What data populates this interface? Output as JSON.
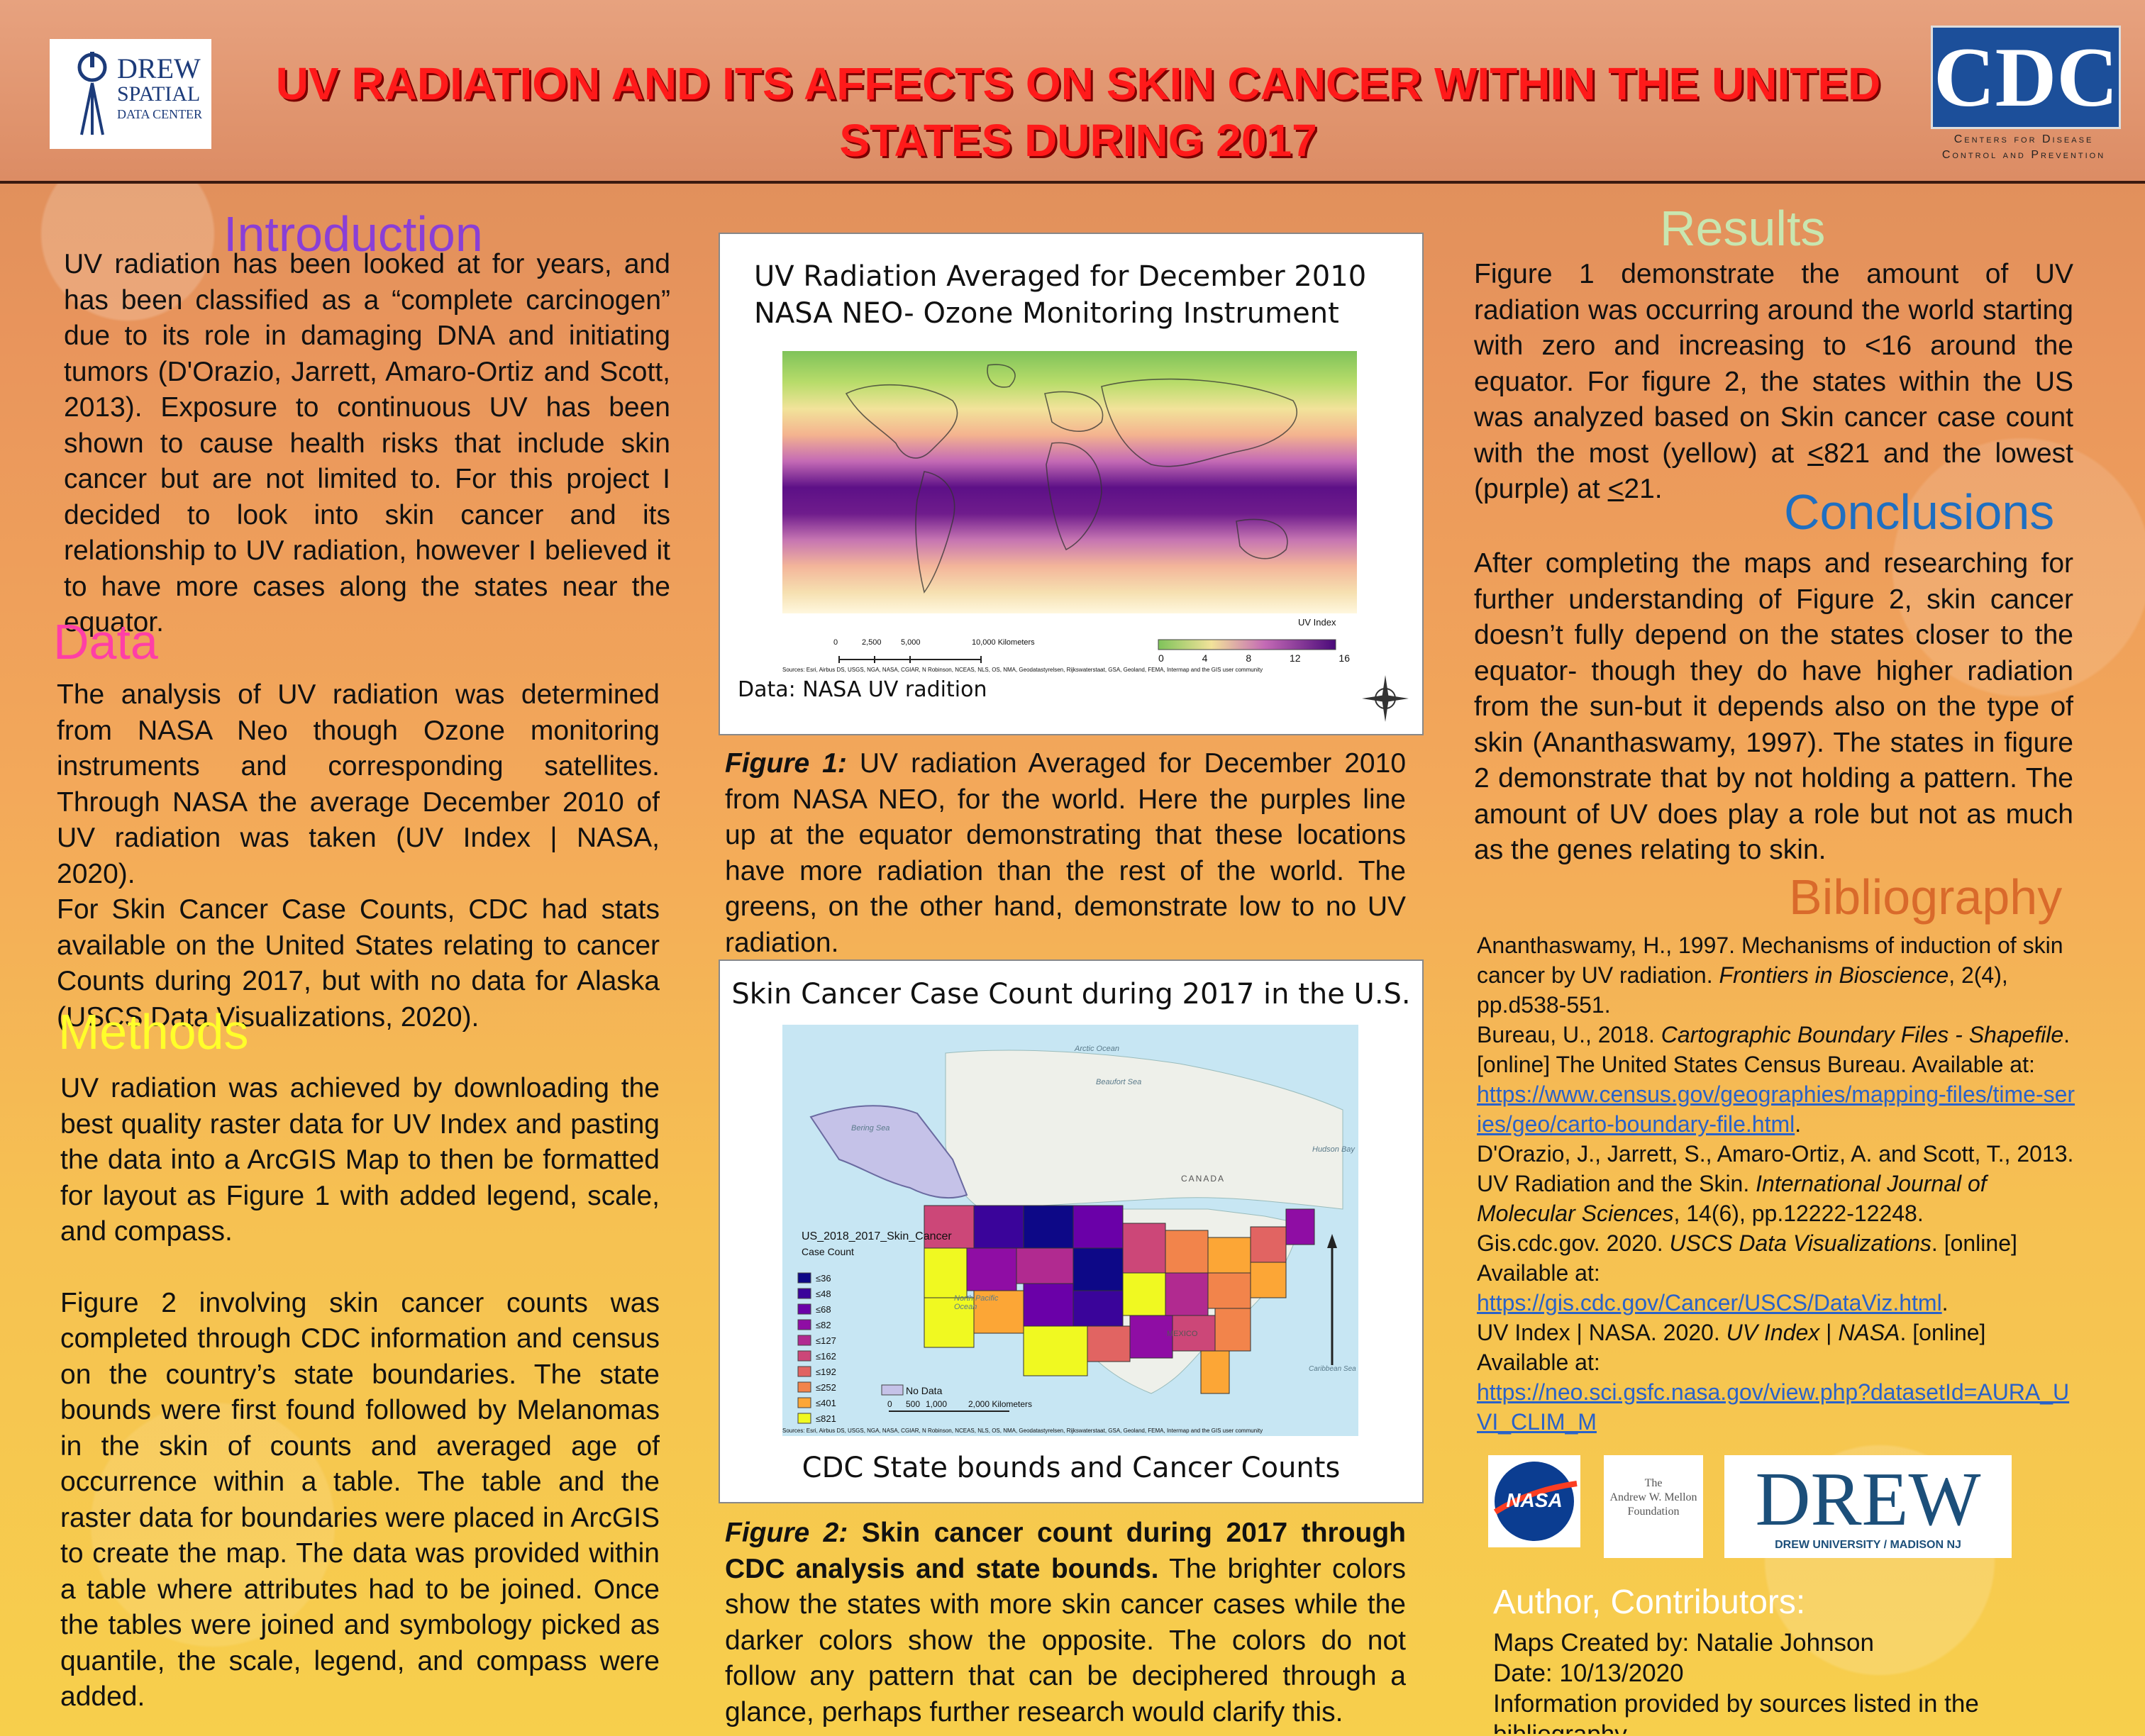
{
  "header": {
    "title": "UV RADIATION AND ITS AFFECTS ON SKIN CANCER WITHIN THE UNITED STATES DURING 2017",
    "drew_logo": {
      "line1": "DREW",
      "line2": "SPATIAL",
      "line3": "DATA CENTER"
    },
    "cdc_logo": {
      "mark": "CDC",
      "line1": "Centers for Disease",
      "line2": "Control and Prevention"
    }
  },
  "introduction": {
    "heading": "Introduction",
    "text": "UV radiation has been looked at for years, and has been classified as a “complete carcinogen” due to its role in damaging DNA and initiating tumors (D'Orazio, Jarrett, Amaro-Ortiz and Scott, 2013). Exposure to continuous UV has been shown to cause health risks that include skin cancer but are not limited to. For this project I decided to look into skin cancer and its relationship to UV radiation, however I believed it to have more cases along the states near the equator."
  },
  "data_section": {
    "heading": "Data",
    "p1": "The analysis of UV radiation was determined from NASA Neo though Ozone monitoring instruments and corresponding satellites. Through NASA the average December 2010 of UV radiation was taken (UV Index | NASA, 2020).",
    "p2": "For Skin Cancer Case Counts, CDC had stats available on the United States relating to cancer Counts during 2017, but with no data for Alaska (USCS Data Visualizations, 2020)."
  },
  "methods": {
    "heading": "Methods",
    "p1": "UV radiation was achieved by downloading the best quality raster data for UV Index and pasting the data into a ArcGIS Map to then be formatted for layout as Figure 1 with added legend, scale, and compass.",
    "p2": "Figure 2 involving skin cancer counts was completed through CDC information and census on the country’s state boundaries. The state bounds were first found followed by Melanomas in the skin of counts and averaged age of occurrence within a table. The table and the raster data for boundaries were placed in ArcGIS to create the map. The data was provided within a table where attributes had to be joined. Once the tables were joined and symbology picked as quantile, the scale, legend, and compass were added."
  },
  "figure1": {
    "title_line1": "UV Radiation Averaged for December 2010",
    "title_line2": "NASA NEO- Ozone Monitoring Instrument",
    "legend_title": "UV Index",
    "legend_ticks": [
      "0",
      "4",
      "8",
      "12",
      "16"
    ],
    "scale_labels": [
      "0",
      "2,500",
      "5,000",
      "10,000 Kilometers"
    ],
    "sources": "Sources: Esri, Airbus DS, USGS, NGA, NASA, CGIAR, N Robinson, NCEAS, NLS, OS, NMA, Geodatastyrelsen, Rijkswaterstaat, GSA, Geoland, FEMA, Intermap and the GIS user community",
    "data_note": "Data: NASA UV radition",
    "caption_label": "Figure 1:",
    "caption_text": " UV radiation Averaged for December 2010 from NASA NEO, for the world. Here the purples line up at the equator demonstrating that these locations have more radiation than the rest of the world. The greens, on the other hand, demonstrate low to no UV radiation."
  },
  "figure2": {
    "title": "Skin Cancer Case Count during 2017 in the U.S.",
    "legend_title": "US_2018_2017_Skin_Cancer",
    "legend_subtitle": "Case Count",
    "legend_items": [
      "≤36",
      "≤48",
      "≤68",
      "≤82",
      "≤127",
      "≤162",
      "≤192",
      "≤252",
      "≤401",
      "≤821"
    ],
    "legend_colors": [
      "#0d0887",
      "#3a049a",
      "#6a00a8",
      "#8f0da4",
      "#b12a90",
      "#cc4778",
      "#e16462",
      "#f2844b",
      "#fca636",
      "#f0f921"
    ],
    "no_data": "No Data",
    "scale_labels": [
      "0",
      "500",
      "1,000",
      "2,000 Kilometers"
    ],
    "map_labels": {
      "arctic": "Arctic Ocean",
      "canada": "CANADA",
      "pacific": "North Pacific Ocean",
      "mexico": "MEXICO",
      "bering": "Bering Sea",
      "hudson": "Hudson Bay",
      "beaufort": "Beaufort Sea",
      "caribbean": "Caribbean Sea"
    },
    "sources": "Sources: Esri, Airbus DS, USGS, NGA, NASA, CGIAR, N Robinson, NCEAS, NLS, OS, NMA, Geodatastyrelsen, Rijkswaterstaat, GSA, Geoland, FEMA, Intermap and the GIS user community",
    "subtitle": "CDC State bounds and Cancer Counts",
    "caption_label": "Figure 2:",
    "caption_bold": " Skin cancer count during 2017 through CDC analysis and state bounds.",
    "caption_text": " The brighter colors show the states with more skin cancer cases while the darker colors show the opposite. The colors do not follow any pattern that can be deciphered through a glance, perhaps further research would clarify this."
  },
  "results": {
    "heading": "Results",
    "text_a": "Figure 1 demonstrate the amount of UV radiation was occurring around the world starting with zero and increasing to <16 around the equator. For figure 2, the states within the US was analyzed based on Skin cancer case count with the most (yellow) at ",
    "le1": "<",
    "text_b": "821 and the lowest (purple) at ",
    "le2": "<",
    "text_c": "21."
  },
  "conclusions": {
    "heading": "Conclusions",
    "text": "After completing the maps and researching for further understanding of Figure 2, skin cancer doesn’t fully depend on the states closer to the equator- though they do have higher radiation from the sun-but it depends also on the type of skin (Ananthaswamy, 1997). The states in figure 2 demonstrate that by not holding a pattern. The amount of UV does play a role but not as much as the genes relating to skin."
  },
  "bibliography": {
    "heading": "Bibliography",
    "r1a": "Ananthaswamy, H., 1997. Mechanisms of induction of skin cancer by UV radiation. ",
    "r1i": "Frontiers in Bioscience",
    "r1b": ", 2(4), pp.d538-551.",
    "r2a": "Bureau, U., 2018. ",
    "r2i": "Cartographic Boundary Files - Shapefile",
    "r2b": ". [online] The United States Census Bureau. Available at:",
    "r2link": "https://www.census.gov/geographies/mapping-files/time-series/geo/carto-boundary-file.html",
    "r2end": ".",
    "r3a": "D'Orazio, J., Jarrett, S., Amaro-Ortiz, A. and Scott, T., 2013. UV Radiation and the Skin. ",
    "r3i": "International Journal of Molecular Sciences",
    "r3b": ", 14(6), pp.12222-12248.",
    "r4a": "Gis.cdc.gov. 2020. ",
    "r4i": "USCS Data Visualizations",
    "r4b": ". [online] Available at:",
    "r4link": "https://gis.cdc.gov/Cancer/USCS/DataViz.html",
    "r4end": ".",
    "r5a": "UV Index | NASA. 2020. ",
    "r5i": "UV Index",
    "r5m": " | ",
    "r5i2": "NASA",
    "r5b": ". [online] Available at:",
    "r5link": "https://neo.sci.gsfc.nasa.gov/view.php?datasetId=AURA_UVI_CLIM_M"
  },
  "logos": {
    "nasa": "NASA",
    "mellon_line1": "The",
    "mellon_line2": "Andrew W. Mellon",
    "mellon_line3": "Foundation",
    "drew": "DREW",
    "drew_sub": "DREW UNIVERSITY / MADISON NJ"
  },
  "author": {
    "heading": "Author, Contributors:",
    "line1": "Maps Created by: Natalie Johnson",
    "line2": "Date: 10/13/2020",
    "line3": "Information provided by sources listed in the bibliography"
  },
  "colors": {
    "title": "#ff1a1a",
    "intro_heading": "#8a3fd6",
    "data_heading": "#ff3fa6",
    "methods_heading": "#ffff2a",
    "results_heading": "#c8e6b0",
    "conclusions_heading": "#1f6fc1",
    "bibliography_heading": "#d96a2b",
    "author_heading": "#ffffff"
  }
}
